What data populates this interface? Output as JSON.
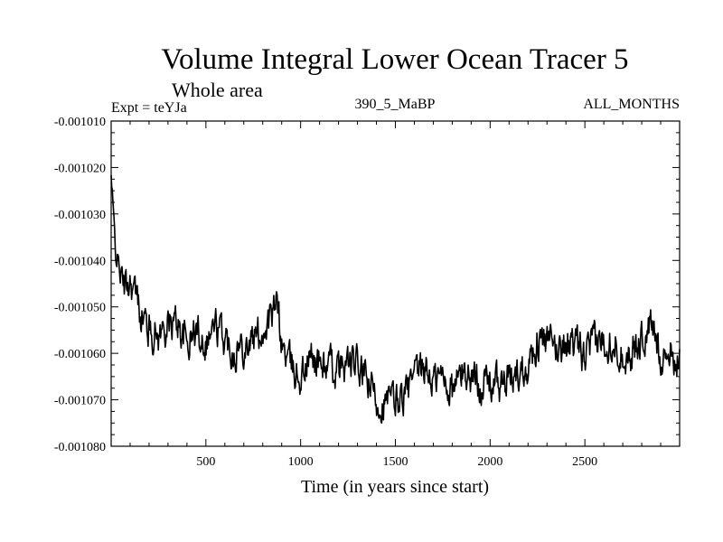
{
  "chart_data": {
    "type": "line",
    "title": "Volume Integral Lower Ocean Tracer 5",
    "subtitle": "Whole area",
    "experiment_label": "Expt = teYJa",
    "run_label": "390_5_MaBP",
    "period_label": "ALL_MONTHS",
    "xlabel": "Time (in years since start)",
    "ylabel": "",
    "xlim": [
      0,
      3000
    ],
    "ylim": [
      -0.00108,
      -0.00101
    ],
    "x_ticks": [
      500,
      1000,
      1500,
      2000,
      2500
    ],
    "x_tick_labels": [
      "500",
      "1000",
      "1500",
      "2000",
      "2500"
    ],
    "y_ticks": [
      -0.00101,
      -0.00102,
      -0.00103,
      -0.00104,
      -0.00105,
      -0.00106,
      -0.00107,
      -0.00108
    ],
    "y_tick_labels": [
      "-0.001010",
      "-0.001020",
      "-0.001030",
      "-0.001040",
      "-0.001050",
      "-0.001060",
      "-0.001070",
      "-0.001080"
    ],
    "grid": false,
    "series": [
      {
        "name": "Volume Integral Lower Ocean Tracer 5",
        "x": [
          0,
          10,
          25,
          50,
          75,
          100,
          150,
          200,
          250,
          300,
          350,
          400,
          450,
          500,
          550,
          600,
          650,
          700,
          750,
          800,
          850,
          880,
          900,
          950,
          1000,
          1050,
          1100,
          1150,
          1200,
          1250,
          1300,
          1350,
          1400,
          1450,
          1500,
          1550,
          1600,
          1650,
          1700,
          1750,
          1800,
          1850,
          1900,
          1950,
          2000,
          2050,
          2100,
          2150,
          2200,
          2250,
          2300,
          2350,
          2400,
          2450,
          2500,
          2550,
          2600,
          2650,
          2700,
          2750,
          2800,
          2850,
          2900,
          2950,
          3000
        ],
        "y": [
          -0.001022,
          -0.00103,
          -0.001038,
          -0.001043,
          -0.001046,
          -0.001044,
          -0.00105,
          -0.001055,
          -0.001056,
          -0.001054,
          -0.001053,
          -0.001058,
          -0.001055,
          -0.001057,
          -0.001054,
          -0.001057,
          -0.001059,
          -0.001058,
          -0.001057,
          -0.001055,
          -0.001052,
          -0.00105,
          -0.001058,
          -0.001063,
          -0.001065,
          -0.001061,
          -0.001062,
          -0.001063,
          -0.001064,
          -0.001062,
          -0.001063,
          -0.001066,
          -0.00107,
          -0.001071,
          -0.00107,
          -0.001069,
          -0.001066,
          -0.001063,
          -0.001066,
          -0.001065,
          -0.001068,
          -0.001064,
          -0.001065,
          -0.001066,
          -0.001066,
          -0.001067,
          -0.001066,
          -0.001064,
          -0.001062,
          -0.001057,
          -0.001058,
          -0.001059,
          -0.001057,
          -0.001059,
          -0.001061,
          -0.001058,
          -0.001057,
          -0.001057,
          -0.00106,
          -0.00106,
          -0.001057,
          -0.001054,
          -0.00106,
          -0.00106,
          -0.001062
        ]
      }
    ]
  }
}
